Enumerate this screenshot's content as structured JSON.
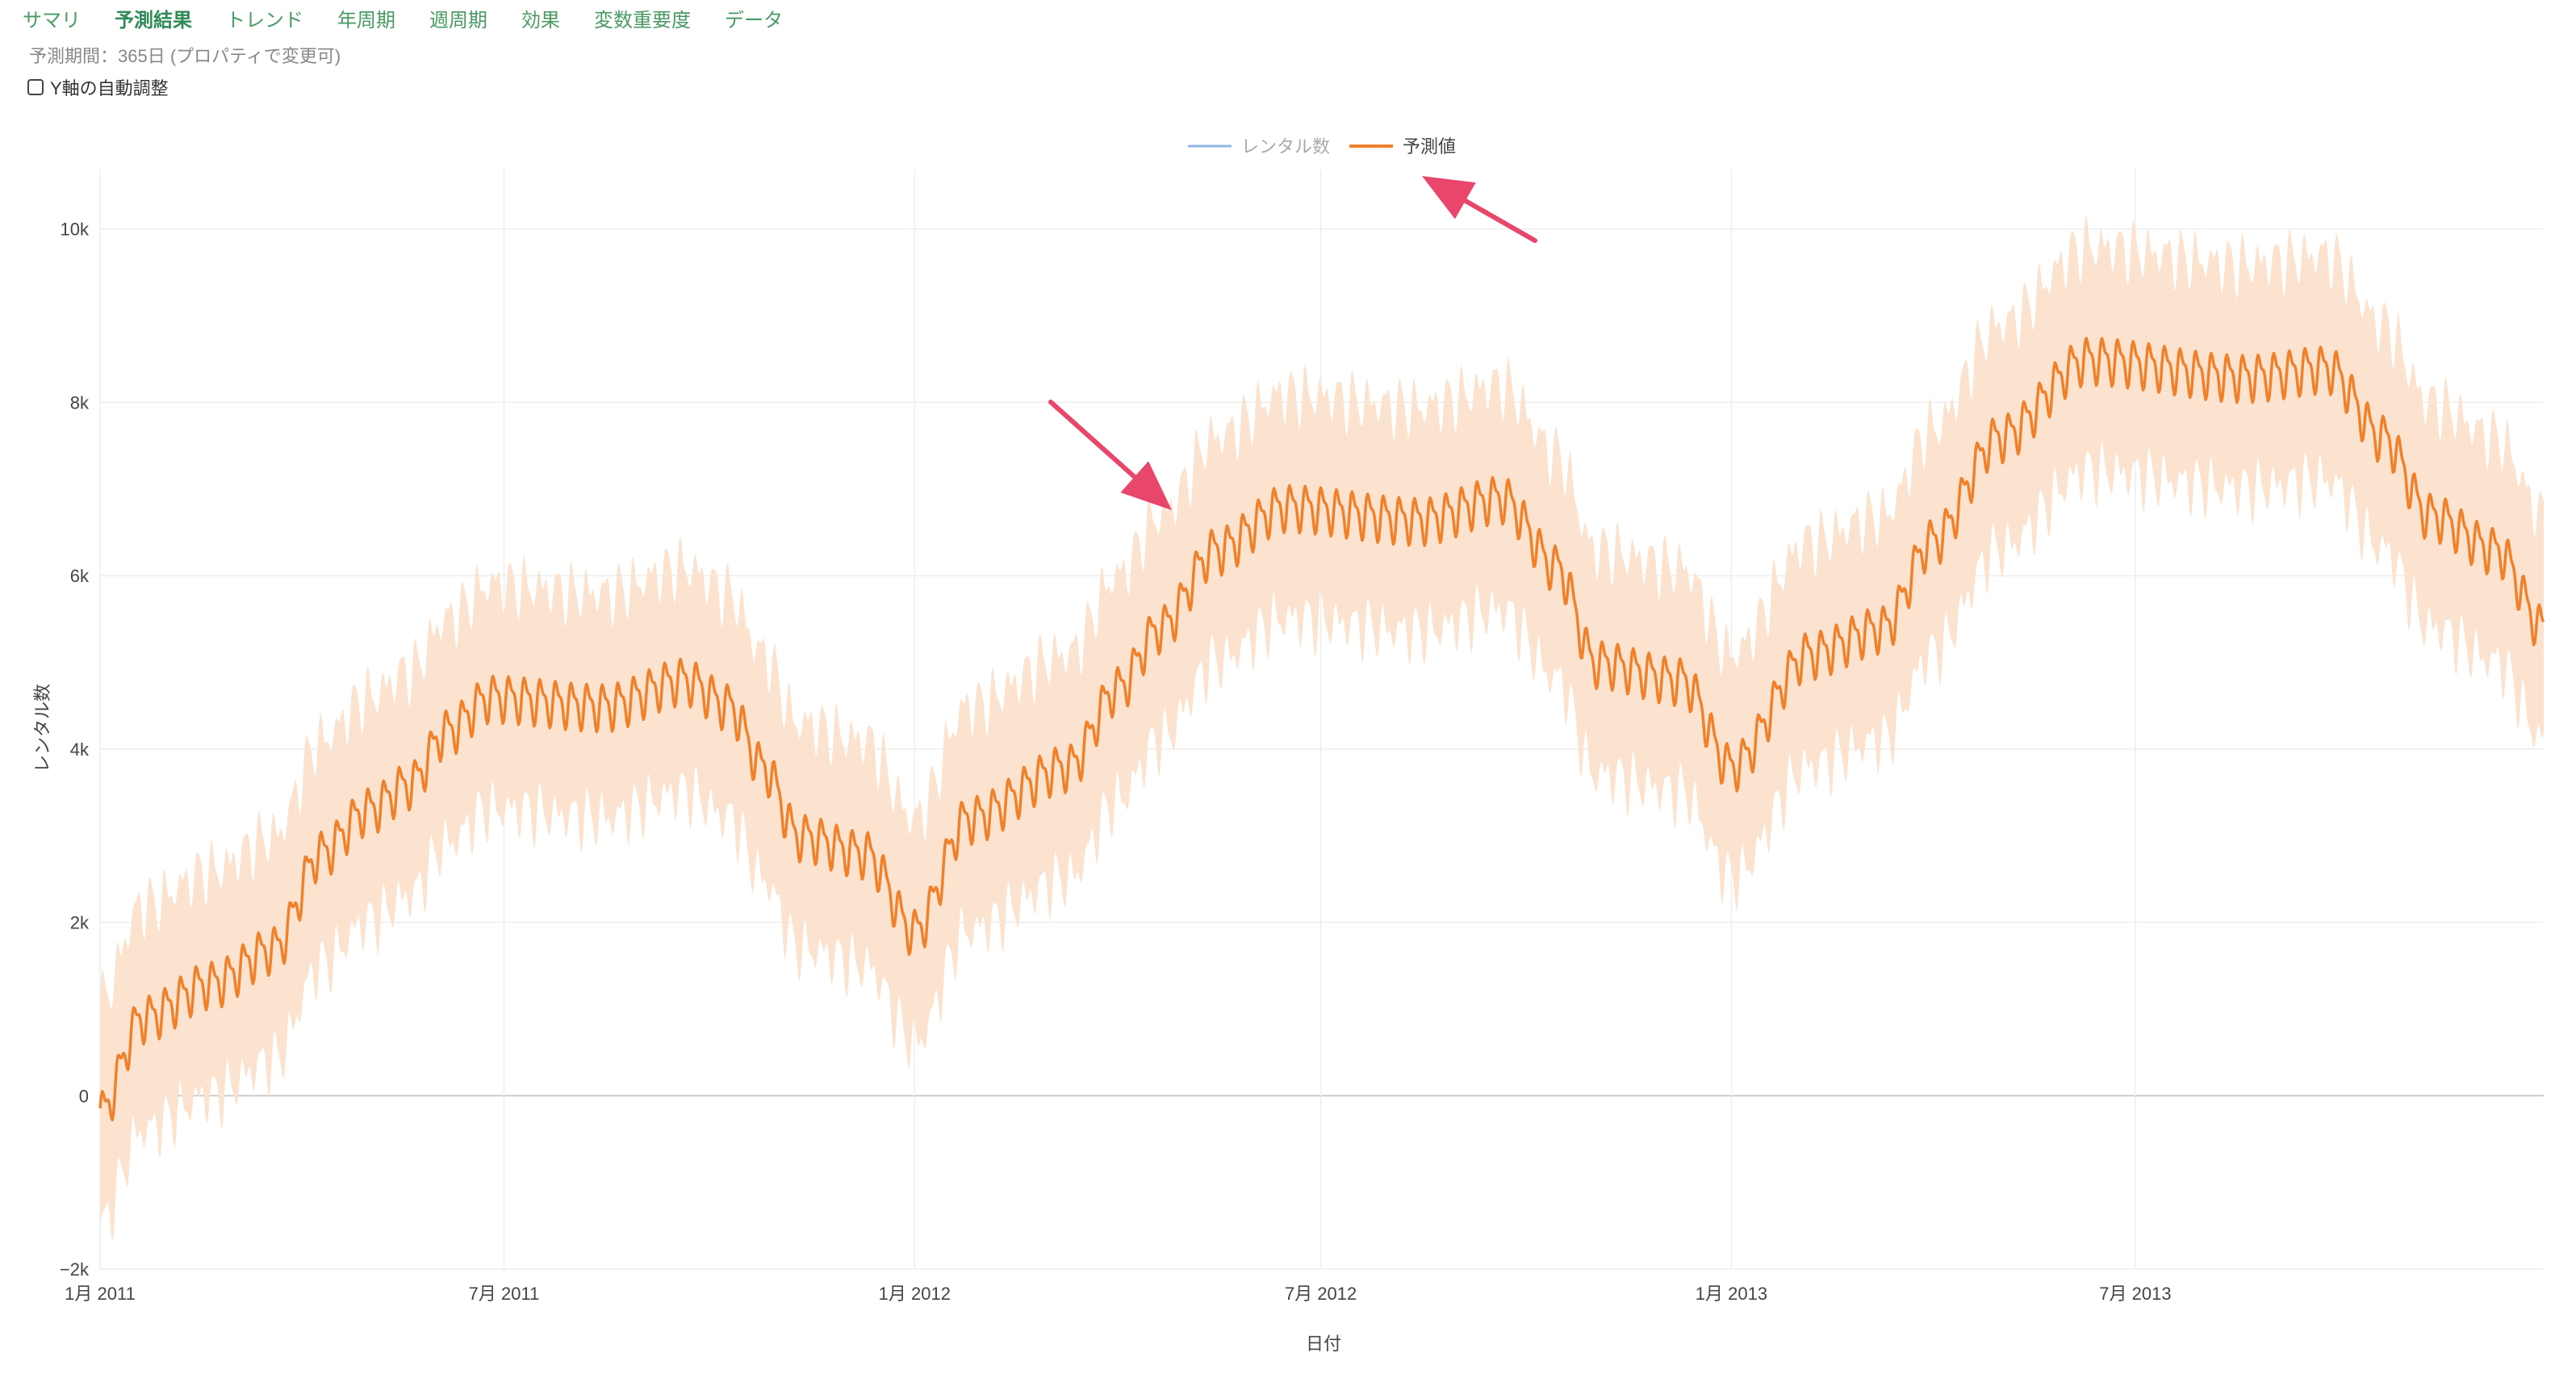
{
  "tabs": [
    {
      "label": "サマリ",
      "active": false
    },
    {
      "label": "予測結果",
      "active": true
    },
    {
      "label": "トレンド",
      "active": false
    },
    {
      "label": "年周期",
      "active": false
    },
    {
      "label": "週周期",
      "active": false
    },
    {
      "label": "効果",
      "active": false
    },
    {
      "label": "変数重要度",
      "active": false
    },
    {
      "label": "データ",
      "active": false
    }
  ],
  "period_text": "予測期間：365日 (プロパティで変更可)",
  "autoscale_label": "Y軸の自動調整",
  "autoscale_checked": false,
  "colors": {
    "forecast_line": "#f0812a",
    "band": "#fbe3cf",
    "actual_line": "#8fb6e6",
    "annotation_arrow": "#e8466a",
    "grid": "#eeeeee",
    "zero_line": "#cccccc"
  },
  "chart_data": {
    "type": "line",
    "xlabel": "日付",
    "ylabel": "レンタル数",
    "legend": [
      {
        "name": "レンタル数",
        "color": "#8fb6e6",
        "dimmed": true
      },
      {
        "name": "予測値",
        "color": "#f0812a",
        "dimmed": false
      }
    ],
    "legend_position": "top-center",
    "x_ticks": [
      "1月 2011",
      "7月 2011",
      "1月 2012",
      "7月 2012",
      "1月 2013",
      "7月 2013"
    ],
    "x_range": [
      "2011-01-01",
      "2013-12-31"
    ],
    "y_ticks": [
      "−2k",
      "0",
      "2k",
      "4k",
      "6k",
      "8k",
      "10k"
    ],
    "y_tick_values": [
      -2000,
      0,
      2000,
      4000,
      6000,
      8000,
      10000
    ],
    "ylim": [
      -2000,
      10500
    ],
    "grid": true,
    "band_half_width": 1300,
    "weekly_amplitude": 280,
    "series": [
      {
        "name": "予測値",
        "trend_points": [
          {
            "x": "2011-01-01",
            "y": -200
          },
          {
            "x": "2011-01-20",
            "y": 900
          },
          {
            "x": "2011-02-20",
            "y": 1300
          },
          {
            "x": "2011-03-20",
            "y": 1700
          },
          {
            "x": "2011-04-10",
            "y": 2800
          },
          {
            "x": "2011-05-01",
            "y": 3300
          },
          {
            "x": "2011-05-20",
            "y": 3600
          },
          {
            "x": "2011-06-05",
            "y": 4200
          },
          {
            "x": "2011-06-25",
            "y": 4600
          },
          {
            "x": "2011-08-15",
            "y": 4500
          },
          {
            "x": "2011-09-20",
            "y": 4800
          },
          {
            "x": "2011-10-10",
            "y": 4500
          },
          {
            "x": "2011-10-25",
            "y": 3800
          },
          {
            "x": "2011-11-10",
            "y": 3000
          },
          {
            "x": "2011-12-10",
            "y": 2800
          },
          {
            "x": "2012-01-01",
            "y": 1900
          },
          {
            "x": "2012-01-25",
            "y": 3200
          },
          {
            "x": "2012-03-10",
            "y": 3800
          },
          {
            "x": "2012-04-01",
            "y": 4700
          },
          {
            "x": "2012-04-20",
            "y": 5400
          },
          {
            "x": "2012-05-15",
            "y": 6300
          },
          {
            "x": "2012-06-15",
            "y": 6800
          },
          {
            "x": "2012-08-15",
            "y": 6650
          },
          {
            "x": "2012-09-20",
            "y": 6900
          },
          {
            "x": "2012-10-15",
            "y": 6100
          },
          {
            "x": "2012-11-01",
            "y": 5000
          },
          {
            "x": "2012-12-10",
            "y": 4800
          },
          {
            "x": "2013-01-01",
            "y": 3800
          },
          {
            "x": "2013-02-05",
            "y": 5100
          },
          {
            "x": "2013-03-10",
            "y": 5400
          },
          {
            "x": "2013-04-01",
            "y": 6400
          },
          {
            "x": "2013-05-01",
            "y": 7600
          },
          {
            "x": "2013-06-10",
            "y": 8500
          },
          {
            "x": "2013-08-20",
            "y": 8300
          },
          {
            "x": "2013-09-25",
            "y": 8400
          },
          {
            "x": "2013-10-20",
            "y": 7600
          },
          {
            "x": "2013-11-10",
            "y": 6700
          },
          {
            "x": "2013-12-10",
            "y": 6300
          },
          {
            "x": "2013-12-31",
            "y": 5400
          }
        ]
      }
    ]
  }
}
